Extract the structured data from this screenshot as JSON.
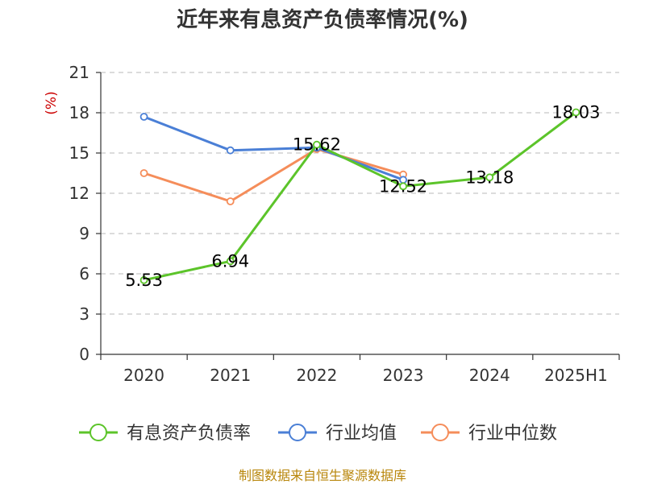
{
  "chart_data": {
    "type": "line",
    "title": "近年来有息资产负债率情况(%)",
    "unit": "(%)",
    "categories": [
      "2020",
      "2021",
      "2022",
      "2023",
      "2024",
      "2025H1"
    ],
    "ylim": [
      0,
      21
    ],
    "yticks": [
      0,
      3,
      6,
      9,
      12,
      15,
      18,
      21
    ],
    "grid": true,
    "legend_position": "bottom",
    "series": [
      {
        "name": "有息资产负债率",
        "color": "#5cc42a",
        "values": [
          5.53,
          6.94,
          15.62,
          12.52,
          13.18,
          18.03
        ],
        "labels": [
          "5.53",
          "6.94",
          "15.62",
          "12.52",
          "13.18",
          "18.03"
        ]
      },
      {
        "name": "行业均值",
        "color": "#4a7fd6",
        "values": [
          17.7,
          15.2,
          15.4,
          13.0,
          null,
          null
        ]
      },
      {
        "name": "行业中位数",
        "color": "#f58d5a",
        "values": [
          13.5,
          11.4,
          15.3,
          13.4,
          null,
          null
        ]
      }
    ]
  },
  "footer": "制图数据来自恒生聚源数据库"
}
